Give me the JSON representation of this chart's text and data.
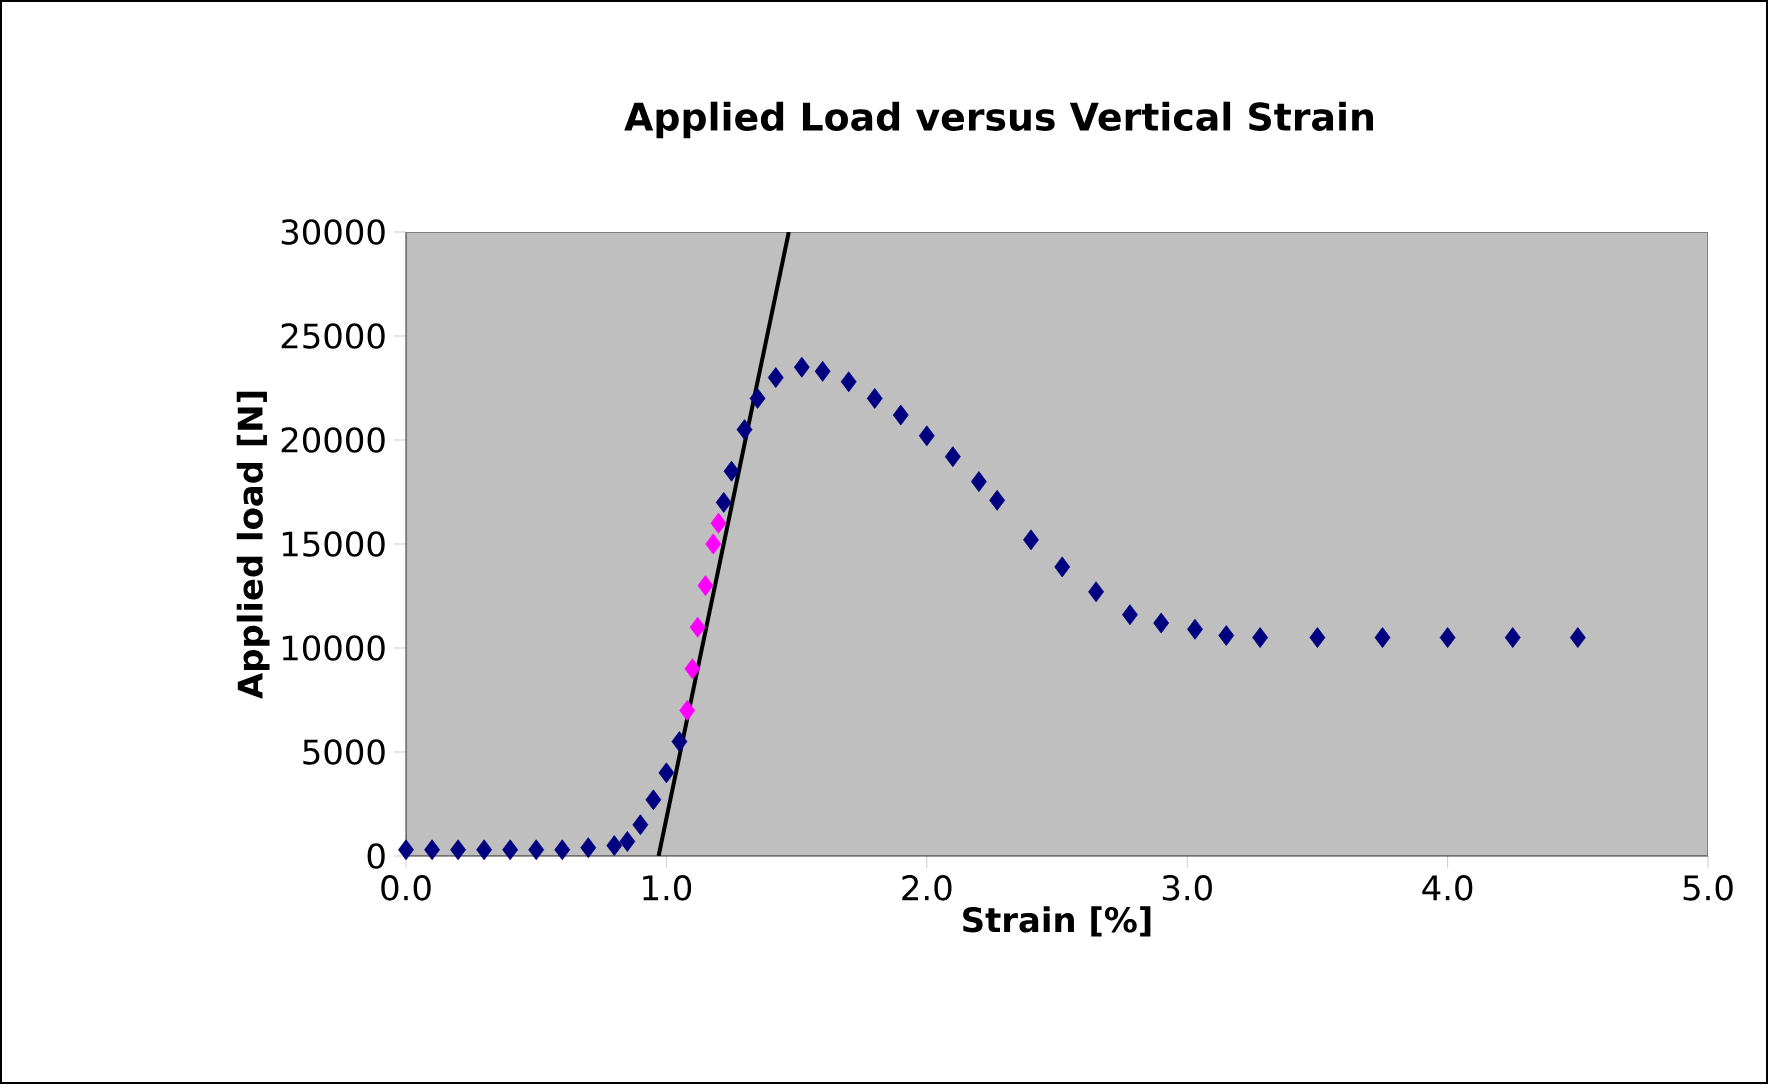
{
  "chart_data": {
    "type": "scatter",
    "title": "Applied Load versus Vertical Strain",
    "xlabel": "Strain [%]",
    "ylabel": "Applied load [N]",
    "xlim": [
      0,
      5
    ],
    "ylim": [
      0,
      30000
    ],
    "xticks": [
      {
        "value": 0,
        "label": "0.0"
      },
      {
        "value": 1,
        "label": "1.0"
      },
      {
        "value": 2,
        "label": "2.0"
      },
      {
        "value": 3,
        "label": "3.0"
      },
      {
        "value": 4,
        "label": "4.0"
      },
      {
        "value": 5,
        "label": "5.0"
      }
    ],
    "yticks": [
      0,
      5000,
      10000,
      15000,
      20000,
      25000,
      30000
    ],
    "marker": "diamond",
    "series": [
      {
        "color": "#000080",
        "x": [
          0.0,
          0.1,
          0.2,
          0.3,
          0.4,
          0.5,
          0.6,
          0.7,
          0.8,
          0.85,
          0.9,
          0.95,
          1.0,
          1.05,
          1.22,
          1.25,
          1.3,
          1.35,
          1.42,
          1.52,
          1.6,
          1.7,
          1.8,
          1.9,
          2.0,
          2.1,
          2.2,
          2.27,
          2.4,
          2.52,
          2.65,
          2.78,
          2.9,
          3.03,
          3.15,
          3.28,
          3.5,
          3.75,
          4.0,
          4.25,
          4.5
        ],
        "values": [
          300,
          300,
          300,
          300,
          300,
          300,
          300,
          400,
          500,
          700,
          1500,
          2700,
          4000,
          5500,
          17000,
          18500,
          20500,
          22000,
          23000,
          23500,
          23300,
          22800,
          22000,
          21200,
          20200,
          19200,
          18000,
          17100,
          15200,
          13900,
          12700,
          11600,
          11200,
          10900,
          10600,
          10500,
          10500,
          10500,
          10500,
          10500,
          10500
        ]
      },
      {
        "color": "#ff00ff",
        "x": [
          1.08,
          1.1,
          1.12,
          1.15,
          1.18,
          1.2
        ],
        "values": [
          7000,
          9000,
          11000,
          13000,
          15000,
          16000
        ]
      },
      {
        "type": "line",
        "color": "#000000",
        "line_style": "solid",
        "marker": "none",
        "x": [
          0.97,
          1.47
        ],
        "values": [
          0,
          30000
        ]
      }
    ]
  }
}
